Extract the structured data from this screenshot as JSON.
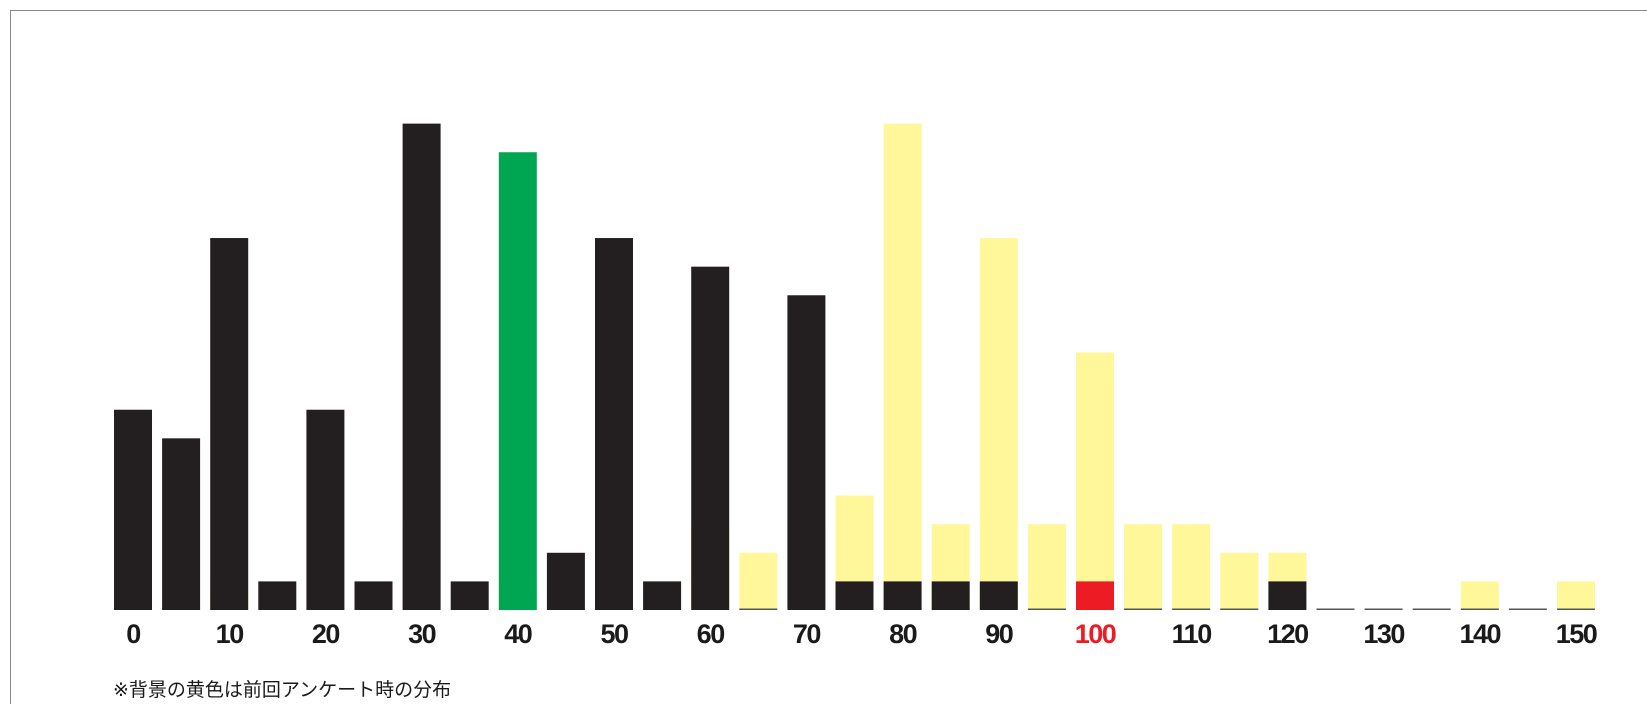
{
  "chart_data": {
    "type": "bar",
    "x": [
      0,
      5,
      10,
      15,
      20,
      25,
      30,
      35,
      40,
      45,
      50,
      55,
      60,
      65,
      70,
      75,
      80,
      85,
      90,
      95,
      100,
      105,
      110,
      115,
      120,
      125,
      130,
      135,
      140,
      145,
      150
    ],
    "tick_labels": [
      "0",
      "10",
      "20",
      "30",
      "40",
      "50",
      "60",
      "70",
      "80",
      "90",
      "100",
      "110",
      "120",
      "130",
      "140",
      "150"
    ],
    "series": [
      {
        "values": [
          7,
          6,
          13,
          1,
          7,
          1,
          17,
          1,
          16,
          2,
          13,
          1,
          12,
          0,
          11,
          1,
          1,
          1,
          1,
          0,
          1,
          0,
          0,
          0,
          1,
          0,
          0,
          0,
          0,
          0,
          0
        ]
      },
      {
        "values": [
          2,
          0,
          1,
          0,
          0,
          0,
          3,
          0,
          1,
          0,
          4,
          1,
          3,
          2,
          3,
          4,
          17,
          3,
          13,
          3,
          9,
          3,
          3,
          2,
          2,
          0,
          0,
          0,
          1,
          0,
          1
        ]
      }
    ],
    "highlight": {
      "40": "#00a651",
      "100": "#ed1c24"
    },
    "colors": {
      "current": "#231f20",
      "previous": "#fff799",
      "highlight_green": "#00a651",
      "highlight_red": "#ed1c24"
    },
    "ylim": [
      0,
      18
    ],
    "grid": false,
    "legend": "none"
  },
  "footnote": "※背景の黄色は前回アンケート時の分布"
}
